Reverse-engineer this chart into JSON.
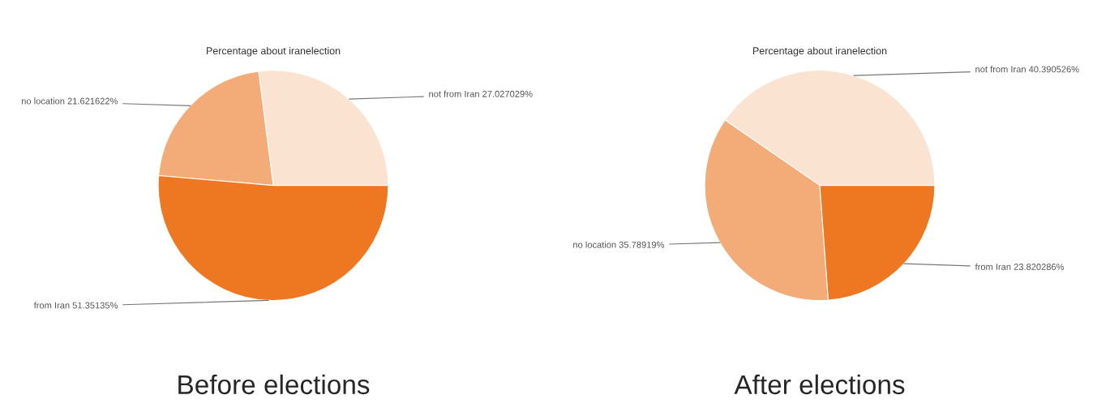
{
  "chart_data": [
    {
      "type": "pie",
      "title": "Percentage about iranelection",
      "categories": [
        "not from Iran",
        "no location",
        "from Iran"
      ],
      "values": [
        27.027029,
        21.621622,
        51.35135
      ],
      "value_labels": [
        "27.027029%",
        "21.621622%",
        "51.35135%"
      ],
      "colors": [
        "#fbe3d2",
        "#f3ab77",
        "#ee7722"
      ],
      "annotations": [
        "Before elections"
      ]
    },
    {
      "type": "pie",
      "title": "Percentage about iranelection",
      "categories": [
        "not from Iran",
        "no location",
        "from Iran"
      ],
      "values": [
        40.390526,
        35.78919,
        23.820286
      ],
      "value_labels": [
        "40.390526%",
        "35.78919%",
        "23.820286%"
      ],
      "colors": [
        "#fbe3d2",
        "#f3ab77",
        "#ee7722"
      ],
      "annotations": [
        "After elections"
      ]
    }
  ]
}
